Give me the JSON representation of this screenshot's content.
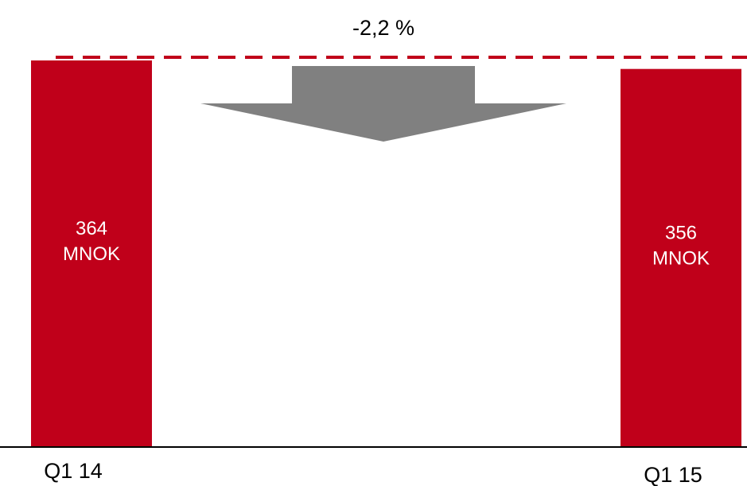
{
  "chart_data": {
    "type": "bar",
    "categories": [
      "Q1 14",
      "Q1 15"
    ],
    "values": [
      364,
      356
    ],
    "value_labels": [
      [
        "364",
        "MNOK"
      ],
      [
        "356",
        "MNOK"
      ]
    ],
    "unit": "MNOK",
    "change_label": "-2,2 %",
    "ylim": [
      0,
      380
    ],
    "grid": false,
    "legend": "none",
    "title": "",
    "xlabel": "",
    "ylabel": ""
  },
  "colors": {
    "bar": "#c0001a",
    "reference_line": "#c0001a",
    "arrow": "#808080",
    "baseline": "#000000"
  },
  "icons": {
    "arrow": "down-arrow-icon"
  }
}
